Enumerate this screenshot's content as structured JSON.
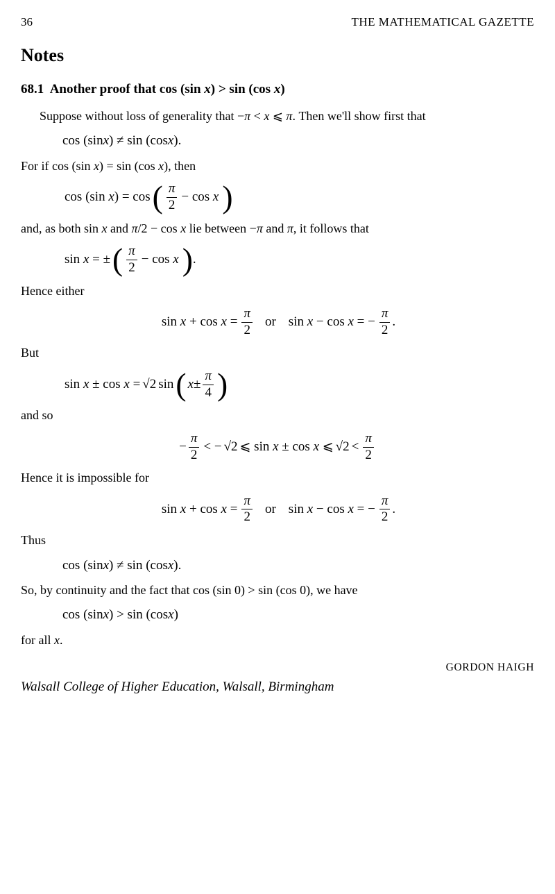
{
  "page_number": "36",
  "journal": "THE MATHEMATICAL GAZETTE",
  "notes_heading": "Notes",
  "section_number": "68.1",
  "section_title_rest": "Another proof that cos (sin ",
  "section_title_var": "x",
  "section_title_mid": ") > sin (cos ",
  "section_title_var2": "x",
  "section_title_end": ")",
  "p1a": "Suppose without loss of generality that −",
  "p1_pi": "π",
  "p1b": " < ",
  "p1_x": "x",
  "p1c": " ⩽ ",
  "p1_pi2": "π",
  "p1d": ". Then we'll show first that",
  "eq1a": "cos (sin ",
  "eq1x": "x",
  "eq1b": ") ≠ sin (cos ",
  "eq1x2": "x",
  "eq1c": ").",
  "p2a": "For if cos (sin ",
  "p2x": "x",
  "p2b": ") = sin (cos ",
  "p2x2": "x",
  "p2c": "), then",
  "eq2a": "cos (sin ",
  "eq2x": "x",
  "eq2b": ") = cos",
  "pi_num": "π",
  "den2": "2",
  "eq2c": "− cos ",
  "eq2x2": "x",
  "p3a": "and, as both sin ",
  "p3x": "x",
  "p3b": " and ",
  "p3pi": "π",
  "p3c": "/2 − cos ",
  "p3x2": "x",
  "p3d": " lie between −",
  "p3pi2": "π",
  "p3e": " and ",
  "p3pi3": "π",
  "p3f": ", it follows that",
  "eq3a": "sin ",
  "eq3x": "x",
  "eq3b": " = ±",
  "eq3c": "− cos ",
  "eq3x2": "x",
  "eq3d": ".",
  "p4": "Hence either",
  "eq4a": "sin ",
  "eq4x": "x",
  "eq4b": " + cos ",
  "eq4x2": "x",
  "eq4c": " =",
  "or_text": "or",
  "eq4d": "sin ",
  "eq4x3": "x",
  "eq4e": " − cos ",
  "eq4x4": "x",
  "eq4f": " = −",
  "eq_period": ".",
  "p5": "But",
  "eq5a": "sin ",
  "eq5x": "x",
  "eq5b": " ± cos ",
  "eq5x2": "x",
  "eq5c": " = ",
  "sqrt2": "√2",
  "eq5d": " sin",
  "eq5x3": "x",
  "eq5e": " ±",
  "four": "4",
  "p6": "and so",
  "eq6a": "−",
  "eq6b": " < −",
  "eq6c": " ⩽ sin ",
  "eq6x": "x",
  "eq6d": " ± cos ",
  "eq6x2": "x",
  "eq6e": " ⩽ ",
  "eq6f": " < ",
  "p7": "Hence it is impossible for",
  "p8": "Thus",
  "p9a": "So, by continuity and the fact that cos (sin 0) > sin (cos 0), we have",
  "eq9a": "cos (sin ",
  "eq9x": "x",
  "eq9b": ") > sin (cos ",
  "eq9x2": "x",
  "eq9c": ")",
  "p10a": "for all ",
  "p10x": "x",
  "p10b": ".",
  "author": "GORDON HAIGH",
  "affiliation": "Walsall College of Higher Education, Walsall, Birmingham"
}
